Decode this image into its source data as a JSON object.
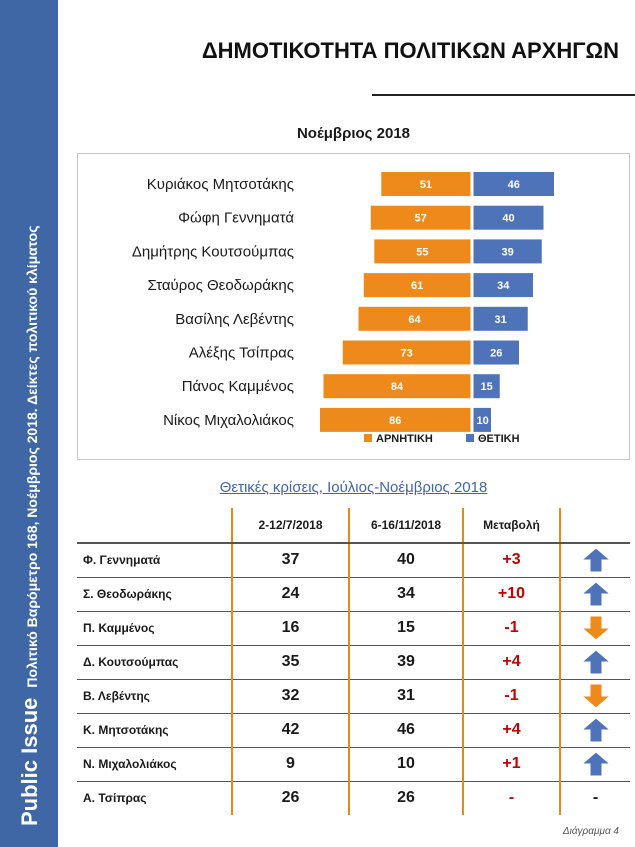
{
  "sidebar": {
    "brand": "Public Issue",
    "subtitle": "Πολιτικό Βαρόμετρο 168, Νοέμβριος 2018. Δείκτες πολιτικού κλίματος"
  },
  "page_title": "ΔΗΜΟΤΙΚΟΤΗΤΑ ΠΟΛΙΤΙΚΩΝ ΑΡΧΗΓΩΝ",
  "chart_data": [
    {
      "type": "bar",
      "orientation": "horizontal-diverging",
      "title": "Νοέμβριος 2018",
      "categories": [
        "Κυριάκος Μητσοτάκης",
        "Φώφη Γεννηματά",
        "Δημήτρης Κουτσούμπας",
        "Σταύρος Θεοδωράκης",
        "Βασίλης Λεβέντης",
        "Αλέξης Τσίπρας",
        "Πάνος Καμμένος",
        "Νίκος Μιχαλολιάκος"
      ],
      "series": [
        {
          "name": "ΑΡΝΗΤΙΚΗ",
          "color": "#ee8a1b",
          "values": [
            51,
            57,
            55,
            61,
            64,
            73,
            84,
            86
          ]
        },
        {
          "name": "ΘΕΤΙΚΗ",
          "color": "#4f73b8",
          "values": [
            46,
            40,
            39,
            34,
            31,
            26,
            15,
            10
          ]
        }
      ],
      "legend": "bottom",
      "grid": false
    },
    {
      "type": "table",
      "title": "Θετικές κρίσεις, Ιούλιος-Νοέμβριος 2018",
      "columns": [
        "",
        "2-12/7/2018",
        "6-16/11/2018",
        "Μεταβολή",
        ""
      ],
      "rows": [
        {
          "name": "Φ. Γεννηματά",
          "before": "37",
          "after": "40",
          "change": "+3",
          "trend": "up"
        },
        {
          "name": "Σ. Θεοδωράκης",
          "before": "24",
          "after": "34",
          "change": "+10",
          "trend": "up"
        },
        {
          "name": "Π. Καμμένος",
          "before": "16",
          "after": "15",
          "change": "-1",
          "trend": "down"
        },
        {
          "name": "Δ. Κουτσούμπας",
          "before": "35",
          "after": "39",
          "change": "+4",
          "trend": "up"
        },
        {
          "name": "Β. Λεβέντης",
          "before": "32",
          "after": "31",
          "change": "-1",
          "trend": "down"
        },
        {
          "name": "Κ. Μητσοτάκης",
          "before": "42",
          "after": "46",
          "change": "+4",
          "trend": "up"
        },
        {
          "name": "Ν. Μιχαλολιάκος",
          "before": "9",
          "after": "10",
          "change": "+1",
          "trend": "up"
        },
        {
          "name": "Α. Τσίπρας",
          "before": "26",
          "after": "26",
          "change": "-",
          "trend": "-"
        }
      ],
      "arrow_colors": {
        "up": "#4f73b8",
        "down": "#ee8a1b"
      }
    }
  ],
  "footer": "Διάγραμμα 4"
}
